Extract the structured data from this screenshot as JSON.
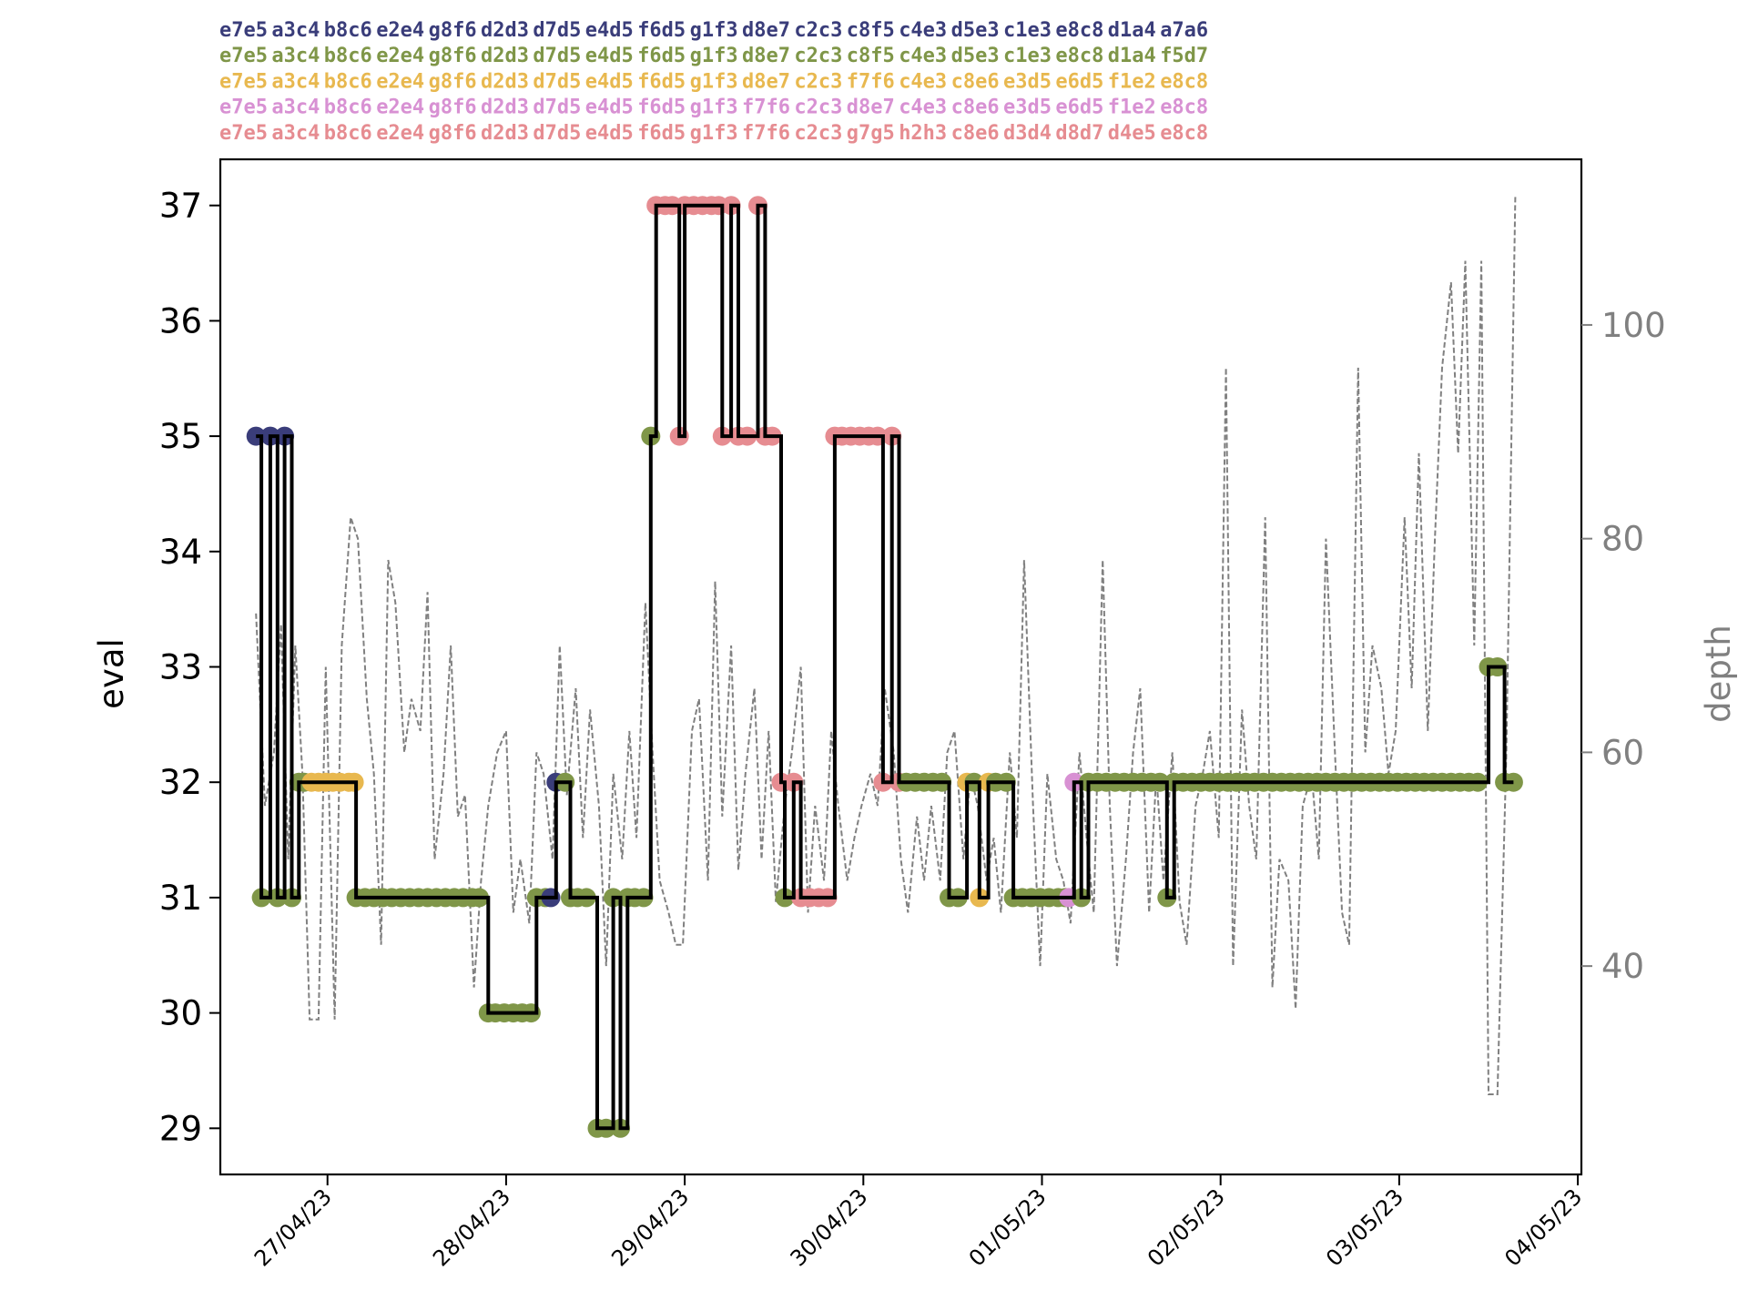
{
  "chart_data": {
    "type": "line",
    "title": "",
    "principal_variations": [
      {
        "color": "#3a3d7a",
        "moves": [
          "e7e5",
          "a3c4",
          "b8c6",
          "e2e4",
          "g8f6",
          "d2d3",
          "d7d5",
          "e4d5",
          "f6d5",
          "g1f3",
          "d8e7",
          "c2c3",
          "c8f5",
          "c4e3",
          "d5e3",
          "c1e3",
          "e8c8",
          "d1a4",
          "a7a6"
        ]
      },
      {
        "color": "#7f9648",
        "moves": [
          "e7e5",
          "a3c4",
          "b8c6",
          "e2e4",
          "g8f6",
          "d2d3",
          "d7d5",
          "e4d5",
          "f6d5",
          "g1f3",
          "d8e7",
          "c2c3",
          "c8f5",
          "c4e3",
          "d5e3",
          "c1e3",
          "e8c8",
          "d1a4",
          "f5d7"
        ]
      },
      {
        "color": "#e8b84f",
        "moves": [
          "e7e5",
          "a3c4",
          "b8c6",
          "e2e4",
          "g8f6",
          "d2d3",
          "d7d5",
          "e4d5",
          "f6d5",
          "g1f3",
          "d8e7",
          "c2c3",
          "f7f6",
          "c4e3",
          "c8e6",
          "e3d5",
          "e6d5",
          "f1e2",
          "e8c8"
        ]
      },
      {
        "color": "#d891d3",
        "moves": [
          "e7e5",
          "a3c4",
          "b8c6",
          "e2e4",
          "g8f6",
          "d2d3",
          "d7d5",
          "e4d5",
          "f6d5",
          "g1f3",
          "f7f6",
          "c2c3",
          "d8e7",
          "c4e3",
          "c8e6",
          "e3d5",
          "e6d5",
          "f1e2",
          "e8c8"
        ]
      },
      {
        "color": "#e68c91",
        "moves": [
          "e7e5",
          "a3c4",
          "b8c6",
          "e2e4",
          "g8f6",
          "d2d3",
          "d7d5",
          "e4d5",
          "f6d5",
          "g1f3",
          "f7f6",
          "c2c3",
          "g7g5",
          "h2h3",
          "c8e6",
          "d3d4",
          "d8d7",
          "d4e5",
          "e8c8"
        ]
      }
    ],
    "xlabel": "",
    "ylabel": "eval",
    "y2label": "depth",
    "x_ticks": [
      "27/04/23",
      "28/04/23",
      "29/04/23",
      "30/04/23",
      "01/05/23",
      "02/05/23",
      "03/05/23",
      "04/05/23"
    ],
    "y_ticks": [
      29,
      30,
      31,
      32,
      33,
      34,
      35,
      36,
      37
    ],
    "y2_ticks": [
      40,
      60,
      80,
      100
    ],
    "xlim": [
      26.4,
      34.02
    ],
    "ylim": [
      28.6,
      37.4
    ],
    "y2lim": [
      20.5,
      115.5
    ],
    "eval_line_color": "#000000",
    "depth_line_color": "#808080",
    "eval_series": [
      {
        "x": 26.6,
        "y": 35,
        "c": "#3a3d7a"
      },
      {
        "x": 26.63,
        "y": 31,
        "c": "#7f9648"
      },
      {
        "x": 26.68,
        "y": 35,
        "c": "#3a3d7a"
      },
      {
        "x": 26.72,
        "y": 31,
        "c": "#7f9648"
      },
      {
        "x": 26.76,
        "y": 35,
        "c": "#3a3d7a"
      },
      {
        "x": 26.8,
        "y": 31,
        "c": "#7f9648"
      },
      {
        "x": 26.84,
        "y": 32,
        "c": "#7f9648"
      },
      {
        "x": 26.87,
        "y": 32,
        "c": "#7f9648"
      },
      {
        "x": 26.91,
        "y": 32,
        "c": "#e8b84f"
      },
      {
        "x": 26.95,
        "y": 32,
        "c": "#e8b84f"
      },
      {
        "x": 26.99,
        "y": 32,
        "c": "#e8b84f"
      },
      {
        "x": 27.03,
        "y": 32,
        "c": "#e8b84f"
      },
      {
        "x": 27.07,
        "y": 32,
        "c": "#e8b84f"
      },
      {
        "x": 27.12,
        "y": 32,
        "c": "#e8b84f"
      },
      {
        "x": 27.15,
        "y": 32,
        "c": "#e8b84f"
      },
      {
        "x": 27.16,
        "y": 31,
        "c": "#7f9648"
      },
      {
        "x": 27.21,
        "y": 31,
        "c": "#7f9648"
      },
      {
        "x": 27.26,
        "y": 31,
        "c": "#7f9648"
      },
      {
        "x": 27.31,
        "y": 31,
        "c": "#7f9648"
      },
      {
        "x": 27.36,
        "y": 31,
        "c": "#7f9648"
      },
      {
        "x": 27.41,
        "y": 31,
        "c": "#7f9648"
      },
      {
        "x": 27.46,
        "y": 31,
        "c": "#7f9648"
      },
      {
        "x": 27.51,
        "y": 31,
        "c": "#7f9648"
      },
      {
        "x": 27.56,
        "y": 31,
        "c": "#7f9648"
      },
      {
        "x": 27.61,
        "y": 31,
        "c": "#7f9648"
      },
      {
        "x": 27.66,
        "y": 31,
        "c": "#7f9648"
      },
      {
        "x": 27.71,
        "y": 31,
        "c": "#7f9648"
      },
      {
        "x": 27.76,
        "y": 31,
        "c": "#7f9648"
      },
      {
        "x": 27.81,
        "y": 31,
        "c": "#7f9648"
      },
      {
        "x": 27.85,
        "y": 31,
        "c": "#7f9648"
      },
      {
        "x": 27.9,
        "y": 30,
        "c": "#7f9648"
      },
      {
        "x": 27.94,
        "y": 30,
        "c": "#7f9648"
      },
      {
        "x": 27.99,
        "y": 30,
        "c": "#7f9648"
      },
      {
        "x": 28.04,
        "y": 30,
        "c": "#7f9648"
      },
      {
        "x": 28.09,
        "y": 30,
        "c": "#7f9648"
      },
      {
        "x": 28.14,
        "y": 30,
        "c": "#7f9648"
      },
      {
        "x": 28.17,
        "y": 31,
        "c": "#7f9648"
      },
      {
        "x": 28.22,
        "y": 31,
        "c": "#7f9648"
      },
      {
        "x": 28.25,
        "y": 31,
        "c": "#3a3d7a"
      },
      {
        "x": 28.28,
        "y": 32,
        "c": "#3a3d7a"
      },
      {
        "x": 28.33,
        "y": 32,
        "c": "#7f9648"
      },
      {
        "x": 28.36,
        "y": 31,
        "c": "#7f9648"
      },
      {
        "x": 28.4,
        "y": 31,
        "c": "#7f9648"
      },
      {
        "x": 28.45,
        "y": 31,
        "c": "#7f9648"
      },
      {
        "x": 28.51,
        "y": 29,
        "c": "#7f9648"
      },
      {
        "x": 28.56,
        "y": 29,
        "c": "#7f9648"
      },
      {
        "x": 28.6,
        "y": 31,
        "c": "#7f9648"
      },
      {
        "x": 28.64,
        "y": 29,
        "c": "#7f9648"
      },
      {
        "x": 28.68,
        "y": 31,
        "c": "#7f9648"
      },
      {
        "x": 28.72,
        "y": 31,
        "c": "#7f9648"
      },
      {
        "x": 28.77,
        "y": 31,
        "c": "#7f9648"
      },
      {
        "x": 28.81,
        "y": 35,
        "c": "#7f9648"
      },
      {
        "x": 28.84,
        "y": 37,
        "c": "#e68c91"
      },
      {
        "x": 28.89,
        "y": 37,
        "c": "#e68c91"
      },
      {
        "x": 28.93,
        "y": 37,
        "c": "#e68c91"
      },
      {
        "x": 28.97,
        "y": 35,
        "c": "#e68c91"
      },
      {
        "x": 29.0,
        "y": 37,
        "c": "#e68c91"
      },
      {
        "x": 29.05,
        "y": 37,
        "c": "#e68c91"
      },
      {
        "x": 29.1,
        "y": 37,
        "c": "#e68c91"
      },
      {
        "x": 29.15,
        "y": 37,
        "c": "#e68c91"
      },
      {
        "x": 29.19,
        "y": 37,
        "c": "#e68c91"
      },
      {
        "x": 29.21,
        "y": 35,
        "c": "#e68c91"
      },
      {
        "x": 29.26,
        "y": 37,
        "c": "#e68c91"
      },
      {
        "x": 29.3,
        "y": 35,
        "c": "#e68c91"
      },
      {
        "x": 29.35,
        "y": 35,
        "c": "#e68c91"
      },
      {
        "x": 29.41,
        "y": 37,
        "c": "#e68c91"
      },
      {
        "x": 29.45,
        "y": 35,
        "c": "#e68c91"
      },
      {
        "x": 29.49,
        "y": 35,
        "c": "#e68c91"
      },
      {
        "x": 29.54,
        "y": 32,
        "c": "#e68c91"
      },
      {
        "x": 29.56,
        "y": 31,
        "c": "#7f9648"
      },
      {
        "x": 29.61,
        "y": 32,
        "c": "#e68c91"
      },
      {
        "x": 29.65,
        "y": 31,
        "c": "#e68c91"
      },
      {
        "x": 29.7,
        "y": 31,
        "c": "#e68c91"
      },
      {
        "x": 29.75,
        "y": 31,
        "c": "#e68c91"
      },
      {
        "x": 29.8,
        "y": 31,
        "c": "#e68c91"
      },
      {
        "x": 29.84,
        "y": 35,
        "c": "#e68c91"
      },
      {
        "x": 29.88,
        "y": 35,
        "c": "#e68c91"
      },
      {
        "x": 29.93,
        "y": 35,
        "c": "#e68c91"
      },
      {
        "x": 29.98,
        "y": 35,
        "c": "#e68c91"
      },
      {
        "x": 30.03,
        "y": 35,
        "c": "#e68c91"
      },
      {
        "x": 30.08,
        "y": 35,
        "c": "#e68c91"
      },
      {
        "x": 30.11,
        "y": 32,
        "c": "#e68c91"
      },
      {
        "x": 30.16,
        "y": 35,
        "c": "#e68c91"
      },
      {
        "x": 30.2,
        "y": 32,
        "c": "#e68c91"
      },
      {
        "x": 30.24,
        "y": 32,
        "c": "#7f9648"
      },
      {
        "x": 30.29,
        "y": 32,
        "c": "#7f9648"
      },
      {
        "x": 30.34,
        "y": 32,
        "c": "#7f9648"
      },
      {
        "x": 30.39,
        "y": 32,
        "c": "#7f9648"
      },
      {
        "x": 30.44,
        "y": 32,
        "c": "#7f9648"
      },
      {
        "x": 30.48,
        "y": 31,
        "c": "#7f9648"
      },
      {
        "x": 30.53,
        "y": 31,
        "c": "#7f9648"
      },
      {
        "x": 30.58,
        "y": 32,
        "c": "#e8b84f"
      },
      {
        "x": 30.62,
        "y": 32,
        "c": "#7f9648"
      },
      {
        "x": 30.65,
        "y": 31,
        "c": "#e8b84f"
      },
      {
        "x": 30.7,
        "y": 32,
        "c": "#e8b84f"
      },
      {
        "x": 30.74,
        "y": 32,
        "c": "#7f9648"
      },
      {
        "x": 30.8,
        "y": 32,
        "c": "#7f9648"
      },
      {
        "x": 30.84,
        "y": 31,
        "c": "#7f9648"
      },
      {
        "x": 30.89,
        "y": 31,
        "c": "#7f9648"
      },
      {
        "x": 30.94,
        "y": 31,
        "c": "#7f9648"
      },
      {
        "x": 30.99,
        "y": 31,
        "c": "#7f9648"
      },
      {
        "x": 31.04,
        "y": 31,
        "c": "#7f9648"
      },
      {
        "x": 31.09,
        "y": 31,
        "c": "#7f9648"
      },
      {
        "x": 31.13,
        "y": 31,
        "c": "#7f9648"
      },
      {
        "x": 31.15,
        "y": 31,
        "c": "#d891d3"
      },
      {
        "x": 31.18,
        "y": 32,
        "c": "#d891d3"
      },
      {
        "x": 31.22,
        "y": 31,
        "c": "#7f9648"
      },
      {
        "x": 31.26,
        "y": 32,
        "c": "#7f9648"
      },
      {
        "x": 31.31,
        "y": 32,
        "c": "#7f9648"
      },
      {
        "x": 31.36,
        "y": 32,
        "c": "#7f9648"
      },
      {
        "x": 31.41,
        "y": 32,
        "c": "#7f9648"
      },
      {
        "x": 31.46,
        "y": 32,
        "c": "#7f9648"
      },
      {
        "x": 31.51,
        "y": 32,
        "c": "#7f9648"
      },
      {
        "x": 31.56,
        "y": 32,
        "c": "#7f9648"
      },
      {
        "x": 31.61,
        "y": 32,
        "c": "#7f9648"
      },
      {
        "x": 31.66,
        "y": 32,
        "c": "#7f9648"
      },
      {
        "x": 31.7,
        "y": 31,
        "c": "#7f9648"
      },
      {
        "x": 31.74,
        "y": 32,
        "c": "#7f9648"
      },
      {
        "x": 31.79,
        "y": 32,
        "c": "#7f9648"
      },
      {
        "x": 31.84,
        "y": 32,
        "c": "#7f9648"
      },
      {
        "x": 31.89,
        "y": 32,
        "c": "#7f9648"
      },
      {
        "x": 31.94,
        "y": 32,
        "c": "#7f9648"
      },
      {
        "x": 31.99,
        "y": 32,
        "c": "#7f9648"
      },
      {
        "x": 32.04,
        "y": 32,
        "c": "#7f9648"
      },
      {
        "x": 32.09,
        "y": 32,
        "c": "#7f9648"
      },
      {
        "x": 32.14,
        "y": 32,
        "c": "#7f9648"
      },
      {
        "x": 32.19,
        "y": 32,
        "c": "#7f9648"
      },
      {
        "x": 32.24,
        "y": 32,
        "c": "#7f9648"
      },
      {
        "x": 32.29,
        "y": 32,
        "c": "#7f9648"
      },
      {
        "x": 32.34,
        "y": 32,
        "c": "#7f9648"
      },
      {
        "x": 32.39,
        "y": 32,
        "c": "#7f9648"
      },
      {
        "x": 32.44,
        "y": 32,
        "c": "#7f9648"
      },
      {
        "x": 32.49,
        "y": 32,
        "c": "#7f9648"
      },
      {
        "x": 32.54,
        "y": 32,
        "c": "#7f9648"
      },
      {
        "x": 32.59,
        "y": 32,
        "c": "#7f9648"
      },
      {
        "x": 32.64,
        "y": 32,
        "c": "#7f9648"
      },
      {
        "x": 32.69,
        "y": 32,
        "c": "#7f9648"
      },
      {
        "x": 32.74,
        "y": 32,
        "c": "#7f9648"
      },
      {
        "x": 32.79,
        "y": 32,
        "c": "#7f9648"
      },
      {
        "x": 32.84,
        "y": 32,
        "c": "#7f9648"
      },
      {
        "x": 32.89,
        "y": 32,
        "c": "#7f9648"
      },
      {
        "x": 32.94,
        "y": 32,
        "c": "#7f9648"
      },
      {
        "x": 32.99,
        "y": 32,
        "c": "#7f9648"
      },
      {
        "x": 33.04,
        "y": 32,
        "c": "#7f9648"
      },
      {
        "x": 33.09,
        "y": 32,
        "c": "#7f9648"
      },
      {
        "x": 33.14,
        "y": 32,
        "c": "#7f9648"
      },
      {
        "x": 33.19,
        "y": 32,
        "c": "#7f9648"
      },
      {
        "x": 33.24,
        "y": 32,
        "c": "#7f9648"
      },
      {
        "x": 33.29,
        "y": 32,
        "c": "#7f9648"
      },
      {
        "x": 33.34,
        "y": 32,
        "c": "#7f9648"
      },
      {
        "x": 33.39,
        "y": 32,
        "c": "#7f9648"
      },
      {
        "x": 33.44,
        "y": 32,
        "c": "#7f9648"
      },
      {
        "x": 33.5,
        "y": 33,
        "c": "#7f9648"
      },
      {
        "x": 33.55,
        "y": 33,
        "c": "#7f9648"
      },
      {
        "x": 33.59,
        "y": 32,
        "c": "#7f9648"
      },
      {
        "x": 33.64,
        "y": 32,
        "c": "#7f9648"
      }
    ],
    "depth_series": {
      "x": [
        26.6,
        26.65,
        26.7,
        26.74,
        26.78,
        26.82,
        26.86,
        26.9,
        26.95,
        26.99,
        27.04,
        27.08,
        27.13,
        27.17,
        27.22,
        27.26,
        27.3,
        27.34,
        27.38,
        27.43,
        27.47,
        27.52,
        27.56,
        27.6,
        27.65,
        27.69,
        27.73,
        27.77,
        27.82,
        27.86,
        27.9,
        27.95,
        28.0,
        28.04,
        28.08,
        28.13,
        28.17,
        28.21,
        28.26,
        28.3,
        28.34,
        28.39,
        28.43,
        28.47,
        28.52,
        28.56,
        28.6,
        28.65,
        28.69,
        28.73,
        28.78,
        28.82,
        28.86,
        28.91,
        28.95,
        28.99,
        29.04,
        29.08,
        29.13,
        29.17,
        29.21,
        29.26,
        29.3,
        29.34,
        29.39,
        29.43,
        29.47,
        29.51,
        29.56,
        29.6,
        29.65,
        29.69,
        29.73,
        29.78,
        29.82,
        29.86,
        29.91,
        29.95,
        29.99,
        30.04,
        30.08,
        30.12,
        30.17,
        30.21,
        30.25,
        30.3,
        30.34,
        30.38,
        30.43,
        30.47,
        30.51,
        30.56,
        30.6,
        30.64,
        30.69,
        30.73,
        30.77,
        30.82,
        30.86,
        30.9,
        30.95,
        30.99,
        31.03,
        31.08,
        31.12,
        31.16,
        31.21,
        31.25,
        31.29,
        31.34,
        31.38,
        31.42,
        31.47,
        31.51,
        31.55,
        31.6,
        31.64,
        31.68,
        31.73,
        31.77,
        31.81,
        31.86,
        31.9,
        31.94,
        31.99,
        32.03,
        32.07,
        32.12,
        32.16,
        32.2,
        32.25,
        32.29,
        32.33,
        32.38,
        32.42,
        32.46,
        32.51,
        32.55,
        32.59,
        32.64,
        32.68,
        32.72,
        32.77,
        32.81,
        32.85,
        32.9,
        32.94,
        32.98,
        33.03,
        33.07,
        33.11,
        33.16,
        33.2,
        33.24,
        33.29,
        33.33,
        33.37,
        33.42,
        33.46,
        33.5,
        33.55,
        33.6,
        33.65
      ],
      "y": [
        73,
        55,
        60,
        72,
        50,
        70,
        58,
        35,
        35,
        68,
        35,
        70,
        82,
        80,
        65,
        58,
        42,
        78,
        74,
        60,
        65,
        62,
        75,
        50,
        58,
        70,
        54,
        56,
        38,
        48,
        55,
        60,
        62,
        45,
        50,
        44,
        60,
        58,
        50,
        70,
        56,
        66,
        52,
        64,
        55,
        40,
        58,
        50,
        62,
        52,
        74,
        60,
        48,
        45,
        42,
        42,
        62,
        65,
        48,
        76,
        54,
        70,
        49,
        58,
        66,
        50,
        62,
        46,
        55,
        60,
        68,
        45,
        55,
        48,
        62,
        55,
        48,
        52,
        55,
        58,
        55,
        66,
        60,
        50,
        45,
        54,
        48,
        55,
        48,
        60,
        62,
        50,
        58,
        55,
        48,
        52,
        45,
        60,
        52,
        78,
        55,
        40,
        58,
        50,
        48,
        44,
        60,
        52,
        45,
        78,
        55,
        40,
        50,
        60,
        66,
        45,
        58,
        48,
        60,
        46,
        42,
        55,
        58,
        62,
        52,
        96,
        40,
        64,
        55,
        50,
        82,
        38,
        50,
        48,
        36,
        55,
        58,
        50,
        80,
        60,
        45,
        42,
        96,
        60,
        70,
        66,
        58,
        62,
        82,
        66,
        88,
        62,
        80,
        96,
        104,
        88,
        106,
        70,
        106,
        28,
        28,
        60,
        112
      ]
    }
  }
}
